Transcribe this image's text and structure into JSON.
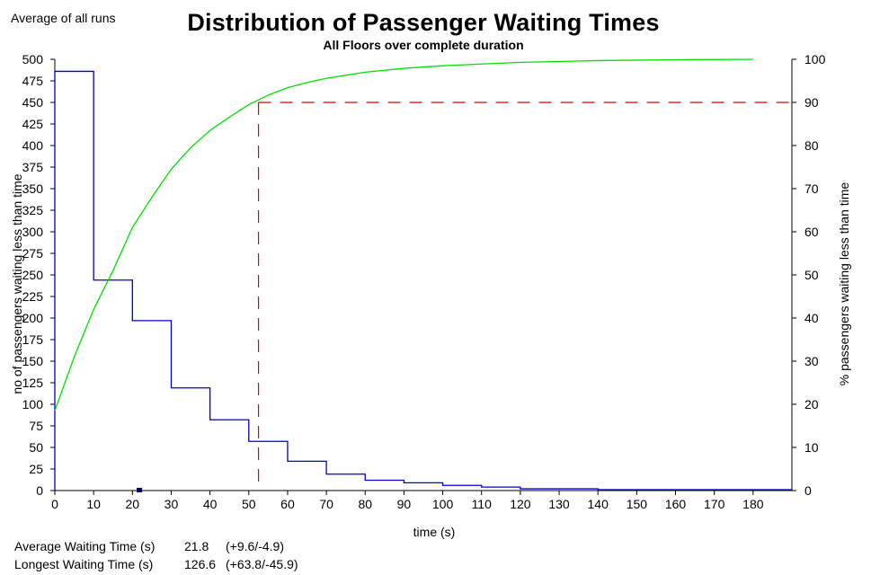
{
  "header": {
    "corner_note": "Average of all runs",
    "title": "Distribution of Passenger Waiting Times",
    "subtitle": "All Floors over complete duration"
  },
  "stats": {
    "avg_label": "Average Waiting Time (s)",
    "avg_value": "21.8",
    "avg_range": "(+9.6/-4.9)",
    "max_label": "Longest Waiting Time (s)",
    "max_value": "126.6",
    "max_range": "(+63.8/-45.9)"
  },
  "chart_data": {
    "type": "line",
    "title": "Distribution of Passenger Waiting Times",
    "subtitle": "All Floors over complete duration",
    "xlabel": "time (s)",
    "ylabel_left": "no of passengers waiting less than time",
    "ylabel_right": "% passengers waiting less than time",
    "xlim": [
      0,
      190
    ],
    "ylim_left": [
      0,
      500
    ],
    "ylim_right": [
      0,
      100
    ],
    "x_ticks": [
      0,
      10,
      20,
      30,
      40,
      50,
      60,
      70,
      80,
      90,
      100,
      110,
      120,
      130,
      140,
      150,
      160,
      170,
      180
    ],
    "y_ticks_left": [
      0,
      25,
      50,
      75,
      100,
      125,
      150,
      175,
      200,
      225,
      250,
      275,
      300,
      325,
      350,
      375,
      400,
      425,
      450,
      475,
      500
    ],
    "y_tick_labels_left": [
      "0",
      "25",
      "50",
      "75",
      "100",
      "125",
      "150",
      "175",
      "200",
      "225",
      "250",
      "275",
      "300",
      "325",
      "350",
      "375",
      "400",
      "425",
      "450",
      "475",
      "500"
    ],
    "y_ticks_right": [
      0,
      10,
      20,
      30,
      40,
      50,
      60,
      70,
      80,
      90,
      100
    ],
    "series": [
      {
        "axis": "left",
        "style": "step",
        "color": "#0000cc",
        "bins": [
          {
            "x0": 0,
            "x1": 10,
            "y": 486
          },
          {
            "x0": 10,
            "x1": 20,
            "y": 244
          },
          {
            "x0": 20,
            "x1": 30,
            "y": 197
          },
          {
            "x0": 30,
            "x1": 40,
            "y": 119
          },
          {
            "x0": 40,
            "x1": 50,
            "y": 82
          },
          {
            "x0": 50,
            "x1": 60,
            "y": 57
          },
          {
            "x0": 60,
            "x1": 70,
            "y": 34
          },
          {
            "x0": 70,
            "x1": 80,
            "y": 19
          },
          {
            "x0": 80,
            "x1": 90,
            "y": 12
          },
          {
            "x0": 90,
            "x1": 100,
            "y": 9
          },
          {
            "x0": 100,
            "x1": 110,
            "y": 6
          },
          {
            "x0": 110,
            "x1": 120,
            "y": 4
          },
          {
            "x0": 120,
            "x1": 130,
            "y": 2
          },
          {
            "x0": 130,
            "x1": 140,
            "y": 2
          },
          {
            "x0": 140,
            "x1": 190,
            "y": 1
          }
        ]
      },
      {
        "axis": "right",
        "style": "line",
        "color": "#00e000",
        "x": [
          0,
          5,
          10,
          15,
          20,
          25,
          30,
          35,
          40,
          45,
          50,
          55,
          60,
          65,
          70,
          80,
          90,
          100,
          110,
          120,
          140,
          160,
          180
        ],
        "y": [
          18.5,
          31,
          42,
          51,
          61,
          68,
          74.5,
          79.5,
          83.5,
          86.6,
          89.5,
          91.7,
          93.4,
          94.6,
          95.6,
          97,
          97.9,
          98.5,
          98.9,
          99.3,
          99.7,
          99.9,
          100
        ]
      }
    ],
    "reference": {
      "color": "#dd0000",
      "x": 52.5,
      "percent": 90
    },
    "average_marker": {
      "x": 21.8,
      "color": "#000066"
    },
    "grid": false,
    "legend": "none"
  }
}
